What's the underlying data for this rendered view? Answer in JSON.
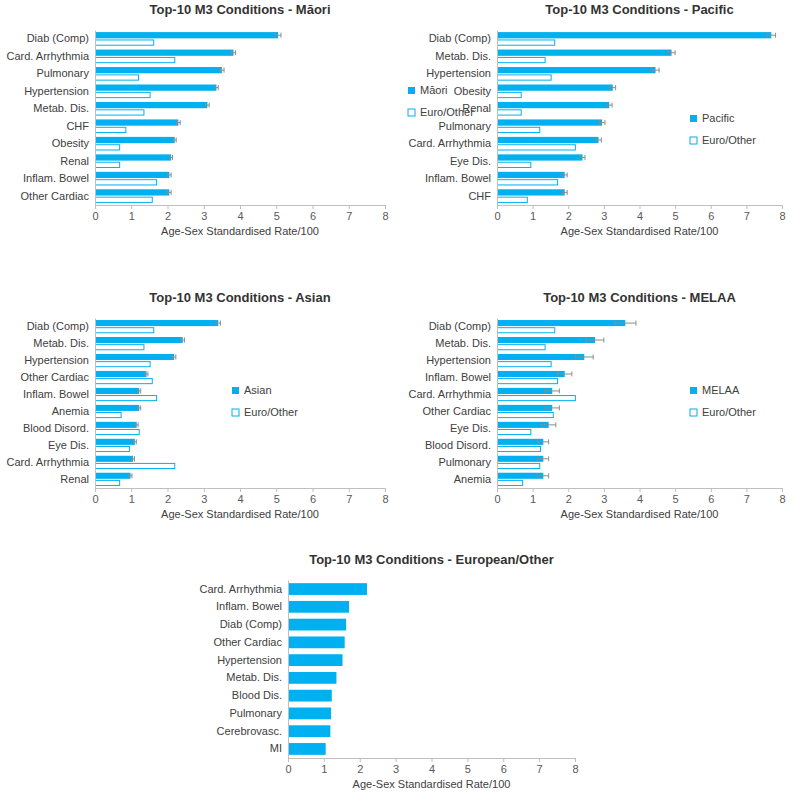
{
  "chart_data": [
    {
      "type": "bar",
      "title": "Top-10 M3 Conditions - Māori",
      "orientation": "horizontal",
      "legend": "right",
      "categories": [
        "Diab (Comp)",
        "Card. Arrhythmia",
        "Pulmonary",
        "Hypertension",
        "Metab. Dis.",
        "CHF",
        "Obesity",
        "Renal",
        "Inflam. Bowel",
        "Other Cardiac"
      ],
      "series": [
        {
          "name": "Māori",
          "color": "#00b0f0",
          "marker": "filled",
          "values": [
            5.05,
            3.82,
            3.5,
            3.35,
            3.1,
            2.3,
            2.2,
            2.1,
            2.05,
            2.05
          ],
          "errors": [
            0.08,
            0.06,
            0.06,
            0.05,
            0.05,
            0.05,
            0.04,
            0.04,
            0.05,
            0.05
          ]
        },
        {
          "name": "Euro/Other",
          "color": "#00b0f0",
          "marker": "hollow",
          "values": [
            1.62,
            2.2,
            1.2,
            1.52,
            1.35,
            0.85,
            0.68,
            0.68,
            1.7,
            1.58
          ]
        }
      ],
      "xlim": [
        0,
        8
      ],
      "xticks": [
        0,
        1,
        2,
        3,
        4,
        5,
        6,
        7,
        8
      ],
      "x_label": "Age-Sex Standardised Rate/100"
    },
    {
      "type": "bar",
      "title": "Top-10 M3 Conditions - Pacific",
      "orientation": "horizontal",
      "legend": "right",
      "categories": [
        "Diab (Comp)",
        "Metab. Dis.",
        "Hypertension",
        "Obesity",
        "Renal",
        "Pulmonary",
        "Card. Arrhythmia",
        "Eye Dis.",
        "Inflam. Bowel",
        "CHF"
      ],
      "series": [
        {
          "name": "Pacific",
          "color": "#00b0f0",
          "marker": "filled",
          "values": [
            7.7,
            4.9,
            4.45,
            3.25,
            3.15,
            2.95,
            2.85,
            2.4,
            1.9,
            1.9
          ],
          "errors": [
            0.12,
            0.1,
            0.1,
            0.08,
            0.08,
            0.08,
            0.08,
            0.07,
            0.07,
            0.07
          ]
        },
        {
          "name": "Euro/Other",
          "color": "#00b0f0",
          "marker": "hollow",
          "values": [
            1.62,
            1.35,
            1.52,
            0.68,
            0.68,
            1.2,
            2.2,
            0.95,
            1.7,
            0.85
          ]
        }
      ],
      "xlim": [
        0,
        8
      ],
      "xticks": [
        0,
        1,
        2,
        3,
        4,
        5,
        6,
        7,
        8
      ],
      "x_label": "Age-Sex Standardised Rate/100"
    },
    {
      "type": "bar",
      "title": "Top-10 M3 Conditions - Asian",
      "orientation": "horizontal",
      "legend": "right",
      "categories": [
        "Diab (Comp)",
        "Metab. Dis.",
        "Hypertension",
        "Other Cardiac",
        "Inflam. Bowel",
        "Anemia",
        "Blood Disord.",
        "Eye Dis.",
        "Card. Arrhythmia",
        "Renal"
      ],
      "series": [
        {
          "name": "Asian",
          "color": "#00b0f0",
          "marker": "filled",
          "values": [
            3.4,
            2.42,
            2.18,
            1.42,
            1.22,
            1.22,
            1.15,
            1.1,
            1.05,
            0.98
          ],
          "errors": [
            0.06,
            0.05,
            0.05,
            0.04,
            0.04,
            0.04,
            0.04,
            0.04,
            0.04,
            0.04
          ]
        },
        {
          "name": "Euro/Other",
          "color": "#00b0f0",
          "marker": "hollow",
          "values": [
            1.62,
            1.35,
            1.52,
            1.58,
            1.7,
            0.72,
            1.22,
            0.95,
            2.2,
            0.68
          ]
        }
      ],
      "xlim": [
        0,
        8
      ],
      "xticks": [
        0,
        1,
        2,
        3,
        4,
        5,
        6,
        7,
        8
      ],
      "x_label": "Age-Sex Standardised Rate/100"
    },
    {
      "type": "bar",
      "title": "Top-10 M3 Conditions - MELAA",
      "orientation": "horizontal",
      "legend": "right",
      "categories": [
        "Diab (Comp)",
        "Metab. Dis.",
        "Hypertension",
        "Inflam. Bowel",
        "Card. Arrhythmia",
        "Other Cardiac",
        "Eye Dis.",
        "Blood Disord.",
        "Pulmonary",
        "Anemia"
      ],
      "series": [
        {
          "name": "MELAA",
          "color": "#00b0f0",
          "marker": "filled",
          "values": [
            3.6,
            2.75,
            2.45,
            1.9,
            1.55,
            1.55,
            1.45,
            1.3,
            1.3,
            1.3
          ],
          "errors": [
            0.3,
            0.25,
            0.25,
            0.2,
            0.2,
            0.2,
            0.2,
            0.15,
            0.15,
            0.15
          ]
        },
        {
          "name": "Euro/Other",
          "color": "#00b0f0",
          "marker": "hollow",
          "values": [
            1.62,
            1.35,
            1.52,
            1.7,
            2.2,
            1.58,
            0.95,
            1.22,
            1.2,
            0.72
          ]
        }
      ],
      "xlim": [
        0,
        8
      ],
      "xticks": [
        0,
        1,
        2,
        3,
        4,
        5,
        6,
        7,
        8
      ],
      "x_label": "Age-Sex Standardised Rate/100"
    },
    {
      "type": "bar",
      "title": "Top-10 M3 Conditions - European/Other",
      "orientation": "horizontal",
      "categories": [
        "Card. Arrhythmia",
        "Inflam. Bowel",
        "Diab (Comp)",
        "Other Cardiac",
        "Hypertension",
        "Metab. Dis.",
        "Blood Dis.",
        "Pulmonary",
        "Cerebrovasc.",
        "MI"
      ],
      "series": [
        {
          "name": "Euro/Other",
          "color": "#00b0f0",
          "marker": "filled",
          "values": [
            2.2,
            1.7,
            1.62,
            1.58,
            1.52,
            1.35,
            1.22,
            1.2,
            1.18,
            1.05
          ]
        }
      ],
      "xlim": [
        0,
        8
      ],
      "xticks": [
        0,
        1,
        2,
        3,
        4,
        5,
        6,
        7,
        8
      ],
      "x_label": "Age-Sex Standardised Rate/100"
    }
  ]
}
